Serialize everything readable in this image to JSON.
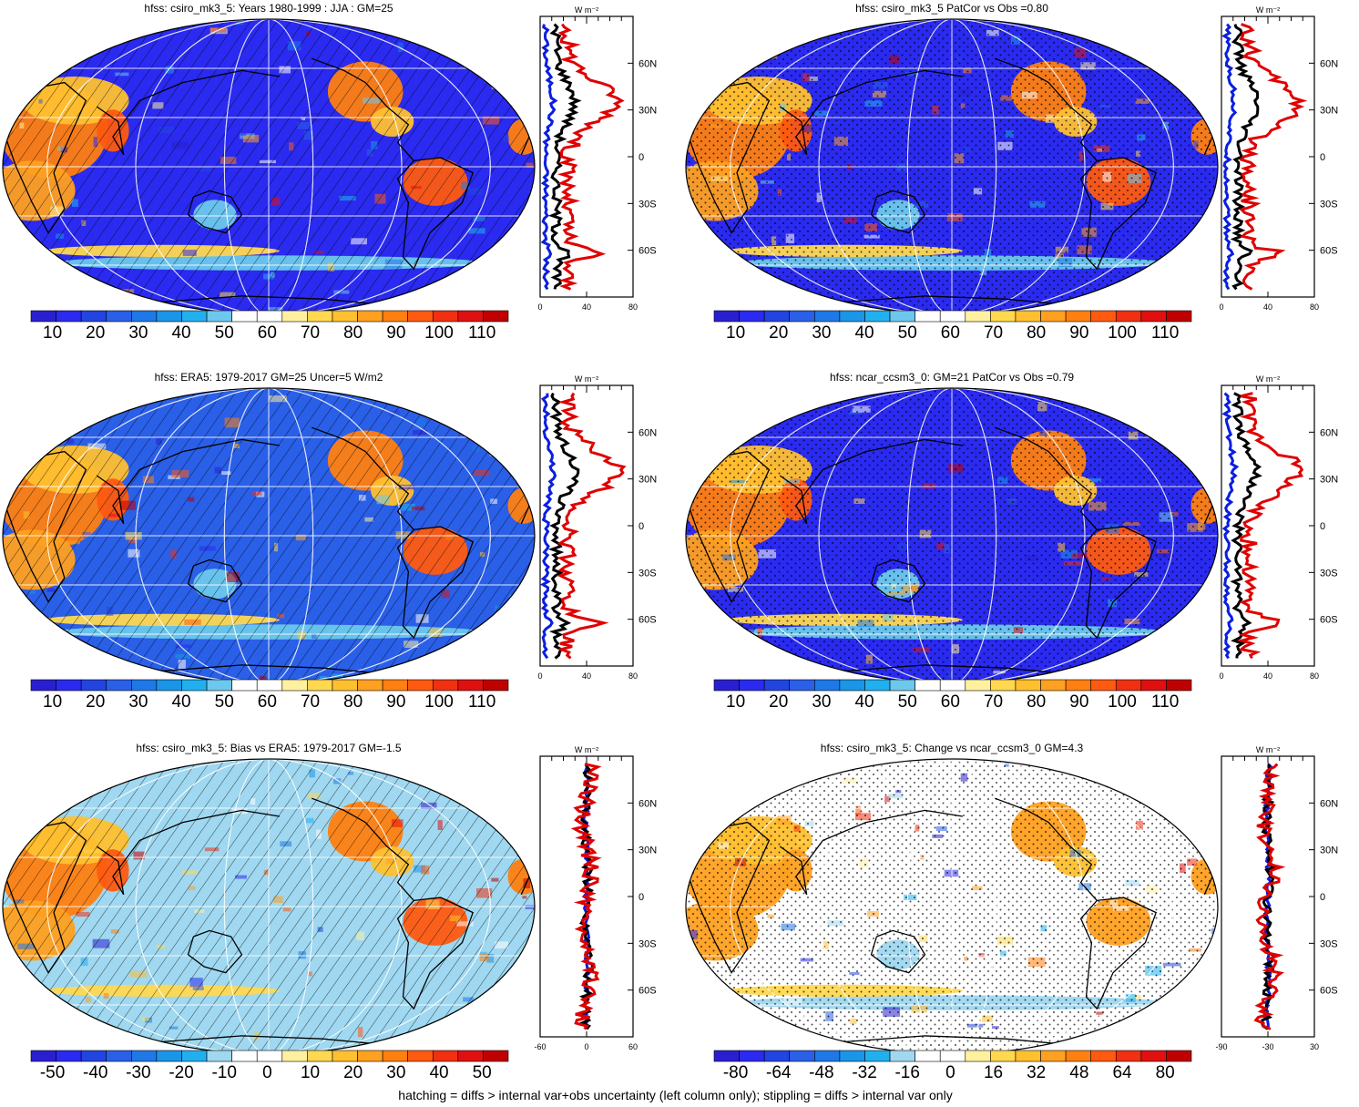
{
  "footer": "hatching = diffs > internal var+obs uncertainty (left column only); stippling = diffs > internal var only",
  "zonal_units": "W m⁻²",
  "lat_labels": [
    "60N",
    "30N",
    "0",
    "30S",
    "60S"
  ],
  "panels": [
    {
      "id": "p1",
      "title": "hfss: csiro_mk3_5: Years 1980-1999 : JJA : GM=25",
      "colorbar": [
        "10",
        "20",
        "30",
        "40",
        "50",
        "60",
        "70",
        "80",
        "90",
        "100",
        "110"
      ],
      "zonal_ticks": [
        "0",
        "40",
        "80"
      ],
      "pattern": "hatch",
      "kind": "abs"
    },
    {
      "id": "p2",
      "title": "hfss: csiro_mk3_5 PatCor vs Obs =0.80",
      "colorbar": [
        "10",
        "20",
        "30",
        "40",
        "50",
        "60",
        "70",
        "80",
        "90",
        "100",
        "110"
      ],
      "zonal_ticks": [
        "0",
        "40",
        "80"
      ],
      "pattern": "stipple",
      "kind": "abs"
    },
    {
      "id": "p3",
      "title": "hfss: ERA5: 1979-2017 GM=25 Uncer=5 W/m2",
      "colorbar": [
        "10",
        "20",
        "30",
        "40",
        "50",
        "60",
        "70",
        "80",
        "90",
        "100",
        "110"
      ],
      "zonal_ticks": [
        "0",
        "40",
        "80"
      ],
      "pattern": "hatch",
      "kind": "abs"
    },
    {
      "id": "p4",
      "title": "hfss: ncar_ccsm3_0: GM=21 PatCor vs Obs =0.79",
      "colorbar": [
        "10",
        "20",
        "30",
        "40",
        "50",
        "60",
        "70",
        "80",
        "90",
        "100",
        "110"
      ],
      "zonal_ticks": [
        "0",
        "40",
        "80"
      ],
      "pattern": "stipple",
      "kind": "abs"
    },
    {
      "id": "p5",
      "title": "hfss: csiro_mk3_5: Bias vs ERA5: 1979-2017 GM=-1.5",
      "colorbar": [
        "-50",
        "-40",
        "-30",
        "-20",
        "-10",
        "0",
        "10",
        "20",
        "30",
        "40",
        "50"
      ],
      "zonal_ticks": [
        "-60",
        "0",
        "60"
      ],
      "pattern": "hatch",
      "kind": "diff"
    },
    {
      "id": "p6",
      "title": "hfss: csiro_mk3_5: Change vs ncar_ccsm3_0 GM=4.3",
      "colorbar": [
        "-80",
        "-64",
        "-48",
        "-32",
        "-16",
        "0",
        "16",
        "32",
        "48",
        "64",
        "80"
      ],
      "zonal_ticks": [
        "-90",
        "-30",
        "30"
      ],
      "pattern": "stipple",
      "kind": "diff"
    }
  ],
  "colors": {
    "abs_scale": [
      "#2a1fd0",
      "#2a2af0",
      "#2244e0",
      "#2a5fe8",
      "#1f78e8",
      "#1a95e8",
      "#20b0f0",
      "#6cc8ec",
      "#ffffff",
      "#ffffff",
      "#fff0a0",
      "#ffd850",
      "#ffc030",
      "#ffa020",
      "#ff8010",
      "#ff5a10",
      "#f03010",
      "#e01010",
      "#c00000"
    ],
    "diff_scale": [
      "#2a1fd0",
      "#2a2af0",
      "#2244e0",
      "#2a5fe8",
      "#1f78e8",
      "#1a95e8",
      "#20b0f0",
      "#9fd8f0",
      "#ffffff",
      "#ffffff",
      "#fff0a0",
      "#ffd850",
      "#ffc030",
      "#ffa020",
      "#ff8010",
      "#ff5a10",
      "#f03010",
      "#e01010",
      "#c00000"
    ],
    "model_line": "#000000",
    "obs_line": "#e00000",
    "other_line": "#0a1ee0"
  }
}
